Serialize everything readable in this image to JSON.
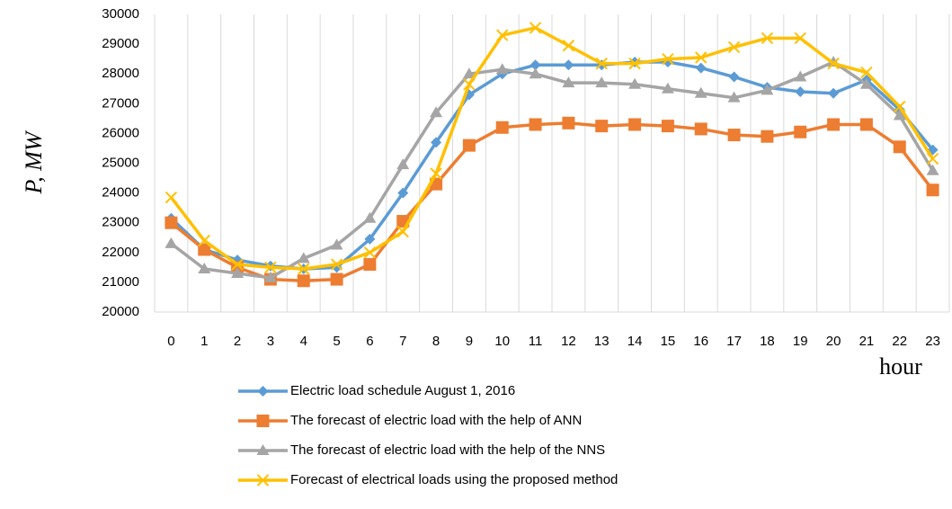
{
  "chart_data": {
    "type": "line",
    "y_label": "P, MW",
    "x_label": "hour",
    "categories": [
      "0",
      "1",
      "2",
      "3",
      "4",
      "5",
      "6",
      "7",
      "8",
      "9",
      "10",
      "11",
      "12",
      "13",
      "14",
      "15",
      "16",
      "17",
      "18",
      "19",
      "20",
      "21",
      "22",
      "23"
    ],
    "ylim": [
      20000,
      30000
    ],
    "yticks": [
      20000,
      21000,
      22000,
      23000,
      24000,
      25000,
      26000,
      27000,
      28000,
      29000,
      30000
    ],
    "grid": "vertical",
    "legend": "bottom",
    "series": [
      {
        "name": "Electric load schedule August 1, 2016",
        "color": "#5b9bd5",
        "marker": "diamond",
        "values": [
          23150,
          22100,
          21750,
          21550,
          21450,
          21500,
          22450,
          24000,
          25700,
          27300,
          28000,
          28300,
          28300,
          28300,
          28400,
          28400,
          28200,
          27900,
          27550,
          27400,
          27350,
          27800,
          26800,
          25450
        ]
      },
      {
        "name": "The forecast of electric load with the help of ANN",
        "color": "#ed7d31",
        "marker": "square",
        "values": [
          23000,
          22100,
          21500,
          21100,
          21050,
          21100,
          21600,
          23050,
          24300,
          25600,
          26200,
          26300,
          26350,
          26250,
          26300,
          26250,
          26150,
          25950,
          25900,
          26050,
          26300,
          26300,
          25550,
          24100
        ]
      },
      {
        "name": "The forecast of electric load with the help of the NNS",
        "color": "#a5a5a5",
        "marker": "triangle",
        "values": [
          22300,
          21450,
          21300,
          21150,
          21800,
          22250,
          23150,
          24950,
          26700,
          28000,
          28150,
          28000,
          27700,
          27700,
          27650,
          27500,
          27350,
          27200,
          27450,
          27900,
          28400,
          27650,
          26600,
          24750
        ]
      },
      {
        "name": "Forecast of electrical loads using the proposed method",
        "color": "#ffc000",
        "marker": "x",
        "values": [
          23850,
          22400,
          21600,
          21500,
          21450,
          21600,
          22000,
          22700,
          24650,
          27650,
          29300,
          29550,
          28950,
          28350,
          28350,
          28500,
          28550,
          28900,
          29200,
          29200,
          28350,
          28050,
          26900,
          25150
        ]
      }
    ]
  }
}
